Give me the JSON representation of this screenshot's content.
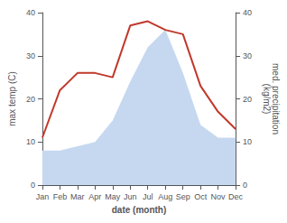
{
  "chart_data": {
    "type": "line",
    "categories": [
      "Jan",
      "Feb",
      "Mar",
      "Apr",
      "May",
      "Jun",
      "Jul",
      "Aug",
      "Sep",
      "Oct",
      "Nov",
      "Dec"
    ],
    "xlabel": "date (month)",
    "ylabel": "max temp (C)",
    "y2label": "med. precipitation\n(kg/m2)",
    "series": [
      {
        "type": "area",
        "axis": "y2",
        "color": "#c5d8f0",
        "values": [
          8,
          8,
          9,
          10,
          15,
          24,
          32,
          36,
          26,
          14,
          11,
          11
        ]
      },
      {
        "type": "line",
        "color": "#c0392b",
        "values": [
          11,
          22,
          26,
          26,
          25,
          37,
          38,
          36,
          35,
          23,
          17,
          13
        ]
      }
    ],
    "ylim": [
      0,
      40
    ],
    "yticks": [
      0,
      10,
      20,
      30,
      40
    ],
    "y2lim": [
      0,
      40
    ],
    "y2ticks": [
      0,
      10,
      20,
      30,
      40
    ],
    "grid": false
  }
}
